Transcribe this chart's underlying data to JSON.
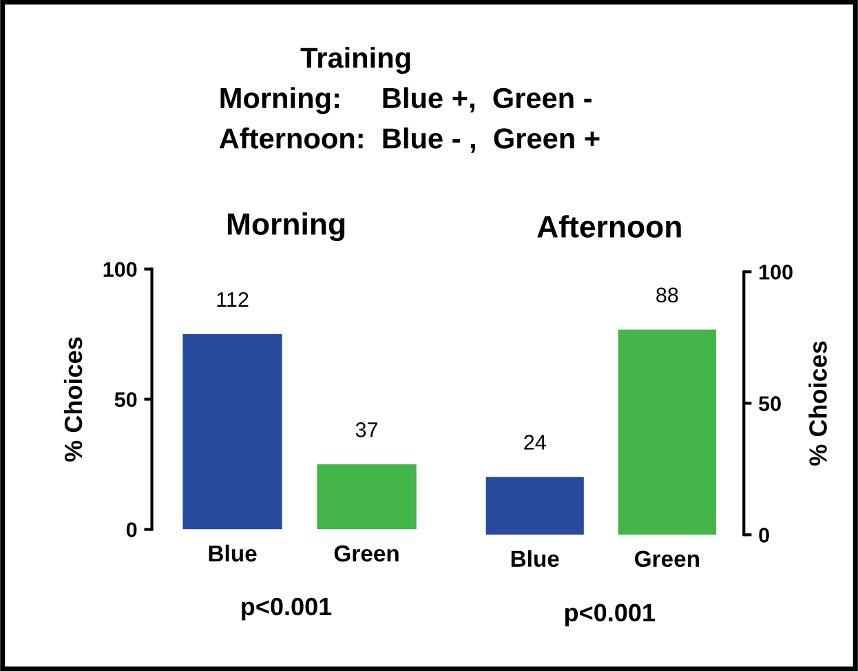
{
  "chart_data": [
    {
      "type": "bar",
      "title": "Morning",
      "ylabel": "% Choices",
      "categories": [
        "Blue",
        "Green"
      ],
      "values": [
        75,
        25
      ],
      "colors": [
        "#284b9f",
        "#44b549"
      ],
      "ylim": [
        0,
        100
      ],
      "yticks": [
        0,
        50,
        100
      ],
      "grid": false,
      "legend": false,
      "annotations": [
        {
          "text": "112",
          "x": "Blue",
          "y": 75
        },
        {
          "text": "37",
          "x": "Green",
          "y": 25
        },
        "Training",
        "Morning:     Blue +,  Green -",
        "Afternoon:  Blue - ,  Green +",
        "p<0.001"
      ]
    },
    {
      "type": "bar",
      "title": "Afternoon",
      "ylabel": "% Choices",
      "categories": [
        "Blue",
        "Green"
      ],
      "values": [
        22,
        78
      ],
      "colors": [
        "#284b9f",
        "#44b549"
      ],
      "ylim": [
        0,
        100
      ],
      "yticks": [
        0,
        50,
        100
      ],
      "grid": false,
      "legend": false,
      "annotations": [
        {
          "text": "24",
          "x": "Blue",
          "y": 22
        },
        {
          "text": "88",
          "x": "Green",
          "y": 78
        },
        "p<0.001"
      ]
    }
  ]
}
